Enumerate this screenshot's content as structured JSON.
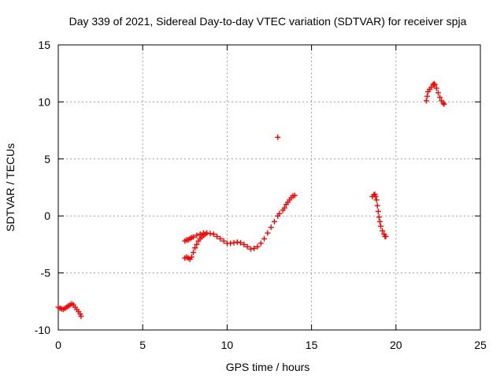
{
  "chart_data": {
    "type": "scatter",
    "title": "Day 339 of 2021, Sidereal Day-to-day VTEC variation (SDTVAR) for receiver spja",
    "xlabel": "GPS time / hours",
    "ylabel": "SDTVAR / TECUs",
    "xlim": [
      0,
      25
    ],
    "ylim": [
      -10,
      15
    ],
    "xticks": [
      0,
      5,
      10,
      15,
      20,
      25
    ],
    "yticks": [
      -10,
      -5,
      0,
      5,
      10,
      15
    ],
    "grid": true,
    "marker": "+",
    "color": "#ff0000",
    "series": [
      {
        "points": [
          [
            0.0,
            -8.0
          ],
          [
            0.1,
            -8.1
          ],
          [
            0.2,
            -8.15
          ],
          [
            0.3,
            -8.2
          ],
          [
            0.4,
            -8.1
          ],
          [
            0.5,
            -8.0
          ],
          [
            0.6,
            -7.9
          ],
          [
            0.7,
            -7.8
          ],
          [
            0.8,
            -7.7
          ],
          [
            0.9,
            -7.8
          ],
          [
            1.0,
            -8.0
          ],
          [
            1.1,
            -8.2
          ],
          [
            1.2,
            -8.4
          ],
          [
            1.3,
            -8.6
          ],
          [
            1.35,
            -8.8
          ],
          [
            7.5,
            -3.7
          ],
          [
            7.6,
            -3.6
          ],
          [
            7.7,
            -3.7
          ],
          [
            7.8,
            -3.8
          ],
          [
            7.9,
            -3.6
          ],
          [
            8.0,
            -3.2
          ],
          [
            8.1,
            -2.8
          ],
          [
            8.2,
            -2.5
          ],
          [
            8.3,
            -2.2
          ],
          [
            8.4,
            -2.0
          ],
          [
            8.5,
            -1.85
          ],
          [
            8.6,
            -1.7
          ],
          [
            8.7,
            -1.6
          ],
          [
            7.5,
            -2.2
          ],
          [
            7.6,
            -2.1
          ],
          [
            7.7,
            -2.1
          ],
          [
            7.8,
            -2.0
          ],
          [
            7.9,
            -1.9
          ],
          [
            8.0,
            -1.85
          ],
          [
            8.2,
            -1.7
          ],
          [
            8.4,
            -1.6
          ],
          [
            8.6,
            -1.5
          ],
          [
            8.8,
            -1.5
          ],
          [
            9.0,
            -1.55
          ],
          [
            9.2,
            -1.6
          ],
          [
            9.4,
            -1.8
          ],
          [
            9.6,
            -2.0
          ],
          [
            9.8,
            -2.2
          ],
          [
            10.0,
            -2.4
          ],
          [
            10.2,
            -2.4
          ],
          [
            10.4,
            -2.35
          ],
          [
            10.6,
            -2.3
          ],
          [
            10.8,
            -2.35
          ],
          [
            11.0,
            -2.5
          ],
          [
            11.2,
            -2.7
          ],
          [
            11.4,
            -2.9
          ],
          [
            11.6,
            -2.85
          ],
          [
            11.8,
            -2.7
          ],
          [
            12.0,
            -2.4
          ],
          [
            12.2,
            -2.0
          ],
          [
            12.4,
            -1.5
          ],
          [
            12.6,
            -1.0
          ],
          [
            12.8,
            -0.5
          ],
          [
            13.0,
            0.0
          ],
          [
            13.1,
            0.2
          ],
          [
            13.0,
            6.9
          ],
          [
            13.3,
            0.5
          ],
          [
            13.4,
            0.7
          ],
          [
            13.5,
            1.0
          ],
          [
            13.6,
            1.2
          ],
          [
            13.7,
            1.4
          ],
          [
            13.8,
            1.6
          ],
          [
            13.9,
            1.75
          ],
          [
            14.0,
            1.8
          ],
          [
            18.6,
            1.7
          ],
          [
            18.7,
            1.85
          ],
          [
            18.75,
            1.9
          ],
          [
            18.8,
            1.7
          ],
          [
            18.85,
            1.4
          ],
          [
            18.9,
            0.9
          ],
          [
            18.95,
            0.4
          ],
          [
            19.0,
            -0.1
          ],
          [
            19.05,
            -0.5
          ],
          [
            19.1,
            -0.9
          ],
          [
            19.2,
            -1.3
          ],
          [
            19.3,
            -1.6
          ],
          [
            19.35,
            -1.8
          ],
          [
            19.4,
            -1.8
          ],
          [
            21.8,
            10.1
          ],
          [
            21.85,
            10.5
          ],
          [
            21.9,
            10.9
          ],
          [
            22.0,
            11.1
          ],
          [
            22.1,
            11.3
          ],
          [
            22.2,
            11.5
          ],
          [
            22.25,
            11.6
          ],
          [
            22.3,
            11.5
          ],
          [
            22.4,
            11.2
          ],
          [
            22.5,
            10.8
          ],
          [
            22.6,
            10.4
          ],
          [
            22.7,
            10.1
          ],
          [
            22.8,
            9.9
          ],
          [
            22.85,
            9.8
          ]
        ]
      }
    ]
  }
}
